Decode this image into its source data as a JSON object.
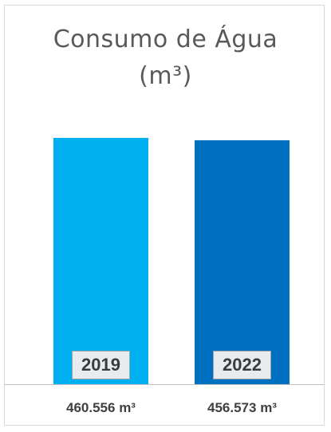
{
  "chart_data": {
    "type": "bar",
    "title": [
      "Consumo de Água",
      "(m³)"
    ],
    "categories": [
      "2019",
      "2022"
    ],
    "values": [
      460556,
      456573
    ],
    "value_labels": [
      "460.556 m³",
      "456.573 m³"
    ],
    "ylim": [
      0,
      500000
    ],
    "colors": [
      "#00b0f0",
      "#0070c0"
    ],
    "grid": false,
    "legend": "none"
  }
}
